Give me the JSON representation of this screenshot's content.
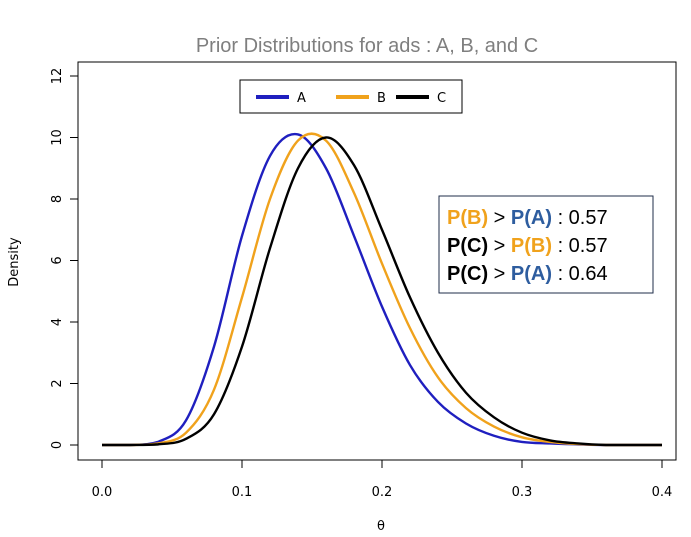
{
  "chart_data": {
    "type": "line",
    "title": "Prior Distributions for ads : A, B, and C",
    "xlabel": "θ",
    "ylabel": "Density",
    "xlim": [
      0.0,
      0.4
    ],
    "ylim": [
      0,
      12
    ],
    "x_ticks": [
      "0.0",
      "0.1",
      "0.2",
      "0.3",
      "0.4"
    ],
    "y_ticks": [
      "0",
      "2",
      "4",
      "6",
      "8",
      "10",
      "12"
    ],
    "grid": false,
    "legend_position": "top-center",
    "series": [
      {
        "name": "A",
        "color": "#1f1fbf",
        "x": [
          0.0,
          0.02,
          0.04,
          0.06,
          0.08,
          0.1,
          0.12,
          0.14,
          0.16,
          0.18,
          0.2,
          0.22,
          0.24,
          0.26,
          0.28,
          0.3,
          0.32,
          0.34,
          0.36,
          0.38,
          0.4
        ],
        "values": [
          0.0,
          0.0,
          0.1,
          0.8,
          3.2,
          6.8,
          9.4,
          10.1,
          9.0,
          6.8,
          4.5,
          2.6,
          1.4,
          0.7,
          0.3,
          0.1,
          0.05,
          0.02,
          0.0,
          0.0,
          0.0
        ]
      },
      {
        "name": "B",
        "color": "#f0a21c",
        "x": [
          0.0,
          0.02,
          0.04,
          0.06,
          0.08,
          0.1,
          0.12,
          0.14,
          0.16,
          0.18,
          0.2,
          0.22,
          0.24,
          0.26,
          0.28,
          0.3,
          0.32,
          0.34,
          0.36,
          0.38,
          0.4
        ],
        "values": [
          0.0,
          0.0,
          0.05,
          0.4,
          1.8,
          4.8,
          8.0,
          9.9,
          9.9,
          8.2,
          5.9,
          3.8,
          2.2,
          1.2,
          0.6,
          0.25,
          0.1,
          0.03,
          0.0,
          0.0,
          0.0
        ]
      },
      {
        "name": "C",
        "color": "#000000",
        "x": [
          0.0,
          0.02,
          0.04,
          0.06,
          0.08,
          0.1,
          0.12,
          0.14,
          0.16,
          0.18,
          0.2,
          0.22,
          0.24,
          0.26,
          0.28,
          0.3,
          0.32,
          0.34,
          0.36,
          0.38,
          0.4
        ],
        "values": [
          0.0,
          0.0,
          0.02,
          0.2,
          1.0,
          3.2,
          6.4,
          9.0,
          10.0,
          9.1,
          7.0,
          4.8,
          3.0,
          1.7,
          0.9,
          0.4,
          0.15,
          0.05,
          0.0,
          0.0,
          0.0
        ]
      }
    ],
    "annotation": {
      "lines": [
        [
          {
            "text": "P(B)",
            "color": "#f0a21c",
            "bold": true
          },
          {
            "text": " > ",
            "color": "#000000",
            "bold": false
          },
          {
            "text": "P(A)",
            "color": "#2e5d9f",
            "bold": true
          },
          {
            "text": " : 0.57",
            "color": "#000000",
            "bold": false
          }
        ],
        [
          {
            "text": "P(C)",
            "color": "#000000",
            "bold": true
          },
          {
            "text": " > ",
            "color": "#000000",
            "bold": false
          },
          {
            "text": "P(B)",
            "color": "#f0a21c",
            "bold": true
          },
          {
            "text": " : 0.57",
            "color": "#000000",
            "bold": false
          }
        ],
        [
          {
            "text": "P(C)",
            "color": "#000000",
            "bold": true
          },
          {
            "text": " > ",
            "color": "#000000",
            "bold": false
          },
          {
            "text": "P(A)",
            "color": "#2e5d9f",
            "bold": true
          },
          {
            "text": " : 0.64",
            "color": "#000000",
            "bold": false
          }
        ]
      ]
    }
  }
}
